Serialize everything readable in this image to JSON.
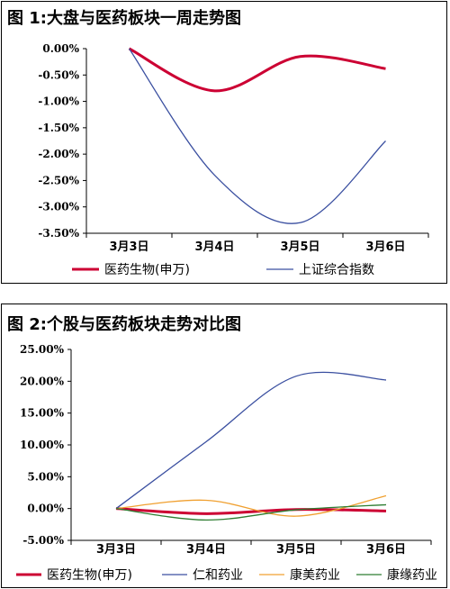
{
  "chart_data": [
    {
      "type": "line",
      "title": "图 1:大盘与医药板块一周走势图",
      "categories": [
        "3月3日",
        "3月4日",
        "3月5日",
        "3月6日"
      ],
      "ylim": [
        -3.5,
        0
      ],
      "yticks": [
        "0.00%",
        "-0.50%",
        "-1.00%",
        "-1.50%",
        "-2.00%",
        "-2.50%",
        "-3.00%",
        "-3.50%"
      ],
      "grid": false,
      "legend": "bottom",
      "series": [
        {
          "name": "医药生物(申万)",
          "color": "#cc0033",
          "values": [
            0.0,
            -0.8,
            -0.15,
            -0.38
          ]
        },
        {
          "name": "上证综合指数",
          "color": "#3a4fa0",
          "values": [
            0.0,
            -2.4,
            -3.3,
            -1.75
          ]
        }
      ]
    },
    {
      "type": "line",
      "title": "图 2:个股与医药板块走势对比图",
      "categories": [
        "3月3日",
        "3月4日",
        "3月5日",
        "3月6日"
      ],
      "ylim": [
        -5,
        25
      ],
      "yticks": [
        "25.00%",
        "20.00%",
        "15.00%",
        "10.00%",
        "5.00%",
        "0.00%",
        "-5.00%"
      ],
      "grid": false,
      "legend": "bottom",
      "series": [
        {
          "name": "医药生物(申万)",
          "color": "#cc0033",
          "values": [
            0.0,
            -0.8,
            -0.15,
            -0.38
          ]
        },
        {
          "name": "仁和药业",
          "color": "#3a4fa0",
          "values": [
            0.0,
            10.5,
            20.8,
            20.2
          ]
        },
        {
          "name": "康美药业",
          "color": "#f0a030",
          "values": [
            0.0,
            1.3,
            -1.2,
            2.0
          ]
        },
        {
          "name": "康缘药业",
          "color": "#2e7d32",
          "values": [
            0.0,
            -1.8,
            -0.2,
            0.6
          ]
        }
      ]
    }
  ]
}
